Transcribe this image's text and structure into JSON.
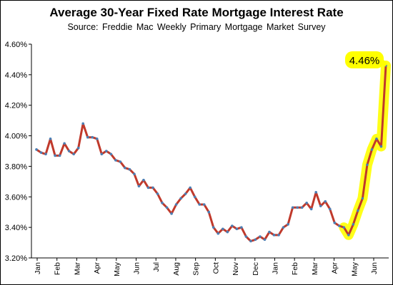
{
  "chart_data": {
    "type": "line",
    "title": "Average 30-Year Fixed Rate Mortgage Interest Rate",
    "subtitle": "Source:  Freddie  Mac Weekly  Primary  Mortgage Market Survey",
    "xlabel": "",
    "ylabel": "",
    "ylim": [
      3.2,
      4.6
    ],
    "y_ticks": [
      "3.20%",
      "3.40%",
      "3.60%",
      "3.80%",
      "4.00%",
      "4.20%",
      "4.40%",
      "4.60%"
    ],
    "y_tick_values": [
      3.2,
      3.4,
      3.6,
      3.8,
      4.0,
      4.2,
      4.4,
      4.6
    ],
    "x_ticks": [
      "Jan",
      "Feb",
      "Mar",
      "Apr",
      "May",
      "Jun",
      "Jul",
      "Aug",
      "Sep",
      "Oct",
      "Nov",
      "Dec",
      "Jan",
      "Feb",
      "Mar",
      "Apr",
      "May",
      "Jun"
    ],
    "grid": false,
    "legend": "none",
    "series": [
      {
        "values": [
          3.91,
          3.89,
          3.88,
          3.98,
          3.87,
          3.87,
          3.95,
          3.9,
          3.88,
          3.92,
          4.08,
          3.99,
          3.99,
          3.98,
          3.88,
          3.9,
          3.88,
          3.84,
          3.83,
          3.79,
          3.78,
          3.75,
          3.67,
          3.71,
          3.66,
          3.66,
          3.62,
          3.56,
          3.53,
          3.49,
          3.55,
          3.59,
          3.62,
          3.66,
          3.6,
          3.55,
          3.55,
          3.5,
          3.4,
          3.36,
          3.39,
          3.37,
          3.41,
          3.39,
          3.4,
          3.34,
          3.31,
          3.32,
          3.34,
          3.32,
          3.37,
          3.35,
          3.35,
          3.4,
          3.42,
          3.53,
          3.53,
          3.53,
          3.56,
          3.52,
          3.63,
          3.54,
          3.57,
          3.52,
          3.43,
          3.41,
          3.4,
          3.35,
          3.42,
          3.51,
          3.59,
          3.81,
          3.91,
          3.98,
          3.93,
          4.46
        ],
        "color": "#c0392b",
        "marker_color": "#4a7fb5"
      }
    ],
    "highlight_segment": {
      "from_index": 66,
      "to_index": 75,
      "color": "#ffff00"
    },
    "callout": {
      "text": "4.46%",
      "index": 75,
      "color": "#ffff00"
    }
  }
}
